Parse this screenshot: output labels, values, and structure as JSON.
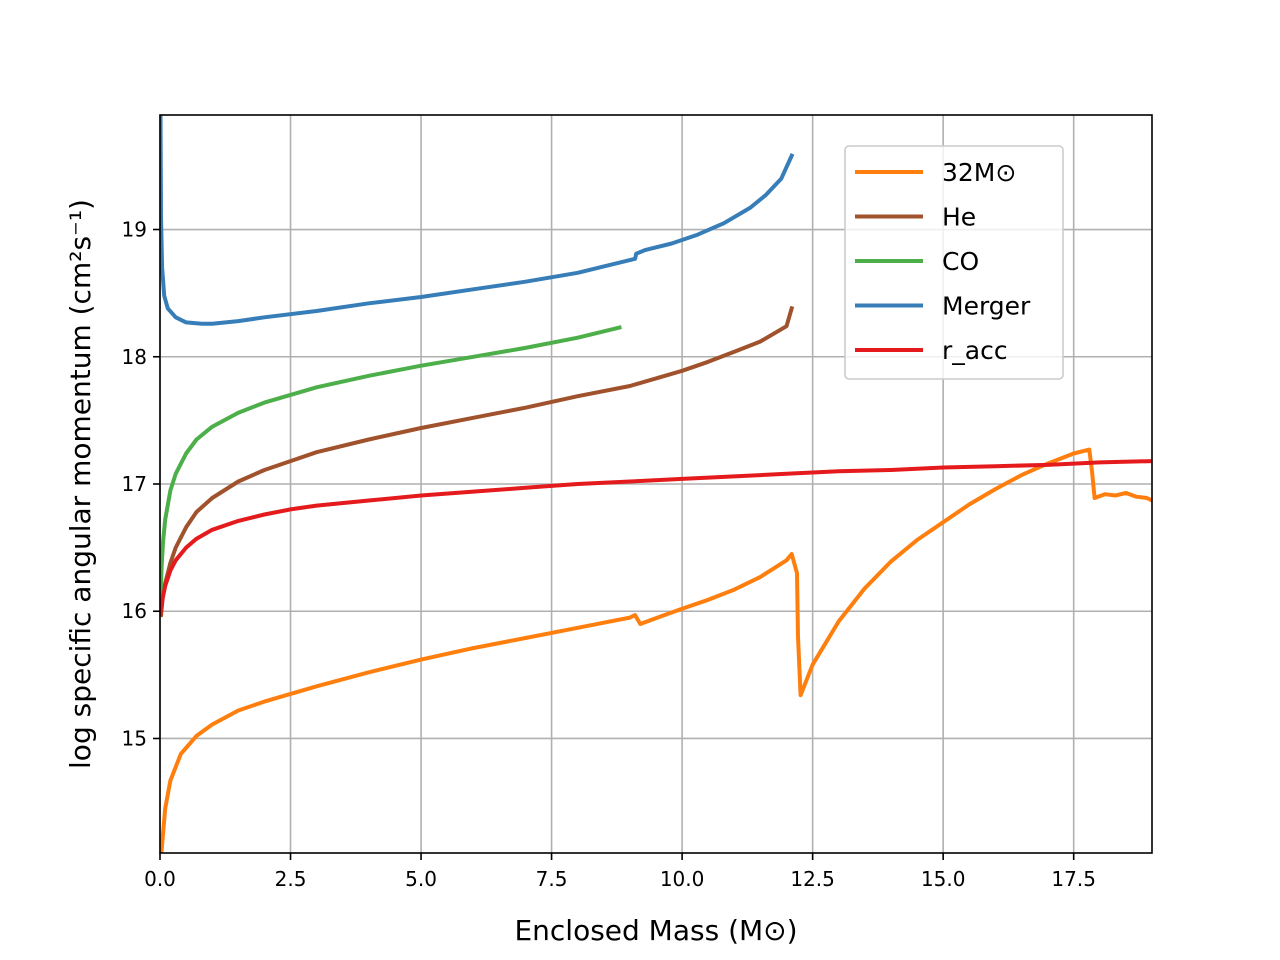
{
  "chart_data": {
    "type": "line",
    "title": "",
    "xlabel": "Enclosed Mass (M⊙)",
    "ylabel": "log specific angular momentum (cm²s⁻¹)",
    "xlim": [
      0,
      19
    ],
    "ylim": [
      14.1,
      19.9
    ],
    "xticks": [
      0.0,
      2.5,
      5.0,
      7.5,
      10.0,
      12.5,
      15.0,
      17.5
    ],
    "xtick_labels": [
      "0.0",
      "2.5",
      "5.0",
      "7.5",
      "10.0",
      "12.5",
      "15.0",
      "17.5"
    ],
    "yticks": [
      15,
      16,
      17,
      18,
      19
    ],
    "ytick_labels": [
      "15",
      "16",
      "17",
      "18",
      "19"
    ],
    "grid": true,
    "legend_position": "top-right",
    "series": [
      {
        "name": "32M⊙",
        "color": "#ff7f0e",
        "x": [
          0.03,
          0.1,
          0.2,
          0.4,
          0.7,
          1.0,
          1.5,
          2.0,
          2.5,
          3.0,
          4.0,
          5.0,
          6.0,
          7.0,
          8.0,
          8.5,
          9.0,
          9.1,
          9.2,
          9.6,
          10.0,
          10.5,
          11.0,
          11.5,
          12.0,
          12.1,
          12.2,
          12.22,
          12.27,
          12.5,
          13.0,
          13.5,
          14.0,
          14.5,
          15.0,
          15.5,
          16.0,
          16.5,
          17.0,
          17.5,
          17.8,
          17.85,
          17.9,
          18.1,
          18.3,
          18.5,
          18.7,
          18.9,
          19.0
        ],
        "y": [
          14.12,
          14.45,
          14.67,
          14.88,
          15.02,
          15.11,
          15.22,
          15.29,
          15.35,
          15.41,
          15.52,
          15.62,
          15.71,
          15.79,
          15.87,
          15.91,
          15.95,
          15.97,
          15.9,
          15.96,
          16.02,
          16.09,
          16.17,
          16.27,
          16.4,
          16.45,
          16.3,
          15.8,
          15.34,
          15.58,
          15.92,
          16.18,
          16.39,
          16.56,
          16.7,
          16.84,
          16.96,
          17.07,
          17.16,
          17.24,
          17.27,
          17.1,
          16.89,
          16.92,
          16.91,
          16.93,
          16.9,
          16.89,
          16.87
        ]
      },
      {
        "name": "He",
        "color": "#a0522d",
        "x": [
          0.02,
          0.05,
          0.1,
          0.2,
          0.3,
          0.5,
          0.7,
          1.0,
          1.5,
          2.0,
          2.5,
          3.0,
          4.0,
          5.0,
          6.0,
          7.0,
          8.0,
          9.0,
          9.5,
          10.0,
          10.5,
          11.0,
          11.5,
          12.0,
          12.1
        ],
        "y": [
          15.97,
          16.1,
          16.22,
          16.38,
          16.5,
          16.66,
          16.78,
          16.89,
          17.02,
          17.11,
          17.18,
          17.25,
          17.35,
          17.44,
          17.52,
          17.6,
          17.69,
          17.77,
          17.83,
          17.89,
          17.96,
          18.04,
          18.12,
          18.24,
          18.38
        ]
      },
      {
        "name": "CO",
        "color": "#4daf4a",
        "x": [
          0.01,
          0.03,
          0.06,
          0.1,
          0.2,
          0.3,
          0.5,
          0.7,
          1.0,
          1.5,
          2.0,
          2.5,
          3.0,
          4.0,
          5.0,
          6.0,
          7.0,
          8.0,
          8.8
        ],
        "y": [
          16.1,
          16.35,
          16.55,
          16.72,
          16.95,
          17.08,
          17.24,
          17.35,
          17.45,
          17.56,
          17.64,
          17.7,
          17.76,
          17.85,
          17.93,
          18.0,
          18.07,
          18.15,
          18.23
        ]
      },
      {
        "name": "Merger",
        "color": "#377eb8",
        "x": [
          0.01,
          0.02,
          0.04,
          0.08,
          0.15,
          0.3,
          0.5,
          0.8,
          1.0,
          1.5,
          2.0,
          3.0,
          4.0,
          5.0,
          6.0,
          7.0,
          8.0,
          8.5,
          9.0,
          9.1,
          9.12,
          9.3,
          9.8,
          10.3,
          10.8,
          11.3,
          11.6,
          11.9,
          12.1
        ],
        "y": [
          19.88,
          19.1,
          18.7,
          18.48,
          18.38,
          18.31,
          18.27,
          18.26,
          18.26,
          18.28,
          18.31,
          18.36,
          18.42,
          18.47,
          18.53,
          18.59,
          18.66,
          18.71,
          18.76,
          18.77,
          18.81,
          18.84,
          18.89,
          18.96,
          19.05,
          19.17,
          19.27,
          19.4,
          19.58
        ]
      },
      {
        "name": "r_acc",
        "color": "#e41a1c",
        "x": [
          0.01,
          0.05,
          0.1,
          0.2,
          0.3,
          0.5,
          0.7,
          1.0,
          1.5,
          2.0,
          2.5,
          3.0,
          4.0,
          5.0,
          6.0,
          7.0,
          8.0,
          9.0,
          10.0,
          11.0,
          12.0,
          13.0,
          14.0,
          15.0,
          16.0,
          17.0,
          18.0,
          19.0
        ],
        "y": [
          15.98,
          16.1,
          16.2,
          16.32,
          16.4,
          16.5,
          16.57,
          16.64,
          16.71,
          16.76,
          16.8,
          16.83,
          16.87,
          16.91,
          16.94,
          16.97,
          17.0,
          17.02,
          17.04,
          17.06,
          17.08,
          17.1,
          17.11,
          17.13,
          17.14,
          17.15,
          17.17,
          17.18
        ]
      }
    ]
  }
}
